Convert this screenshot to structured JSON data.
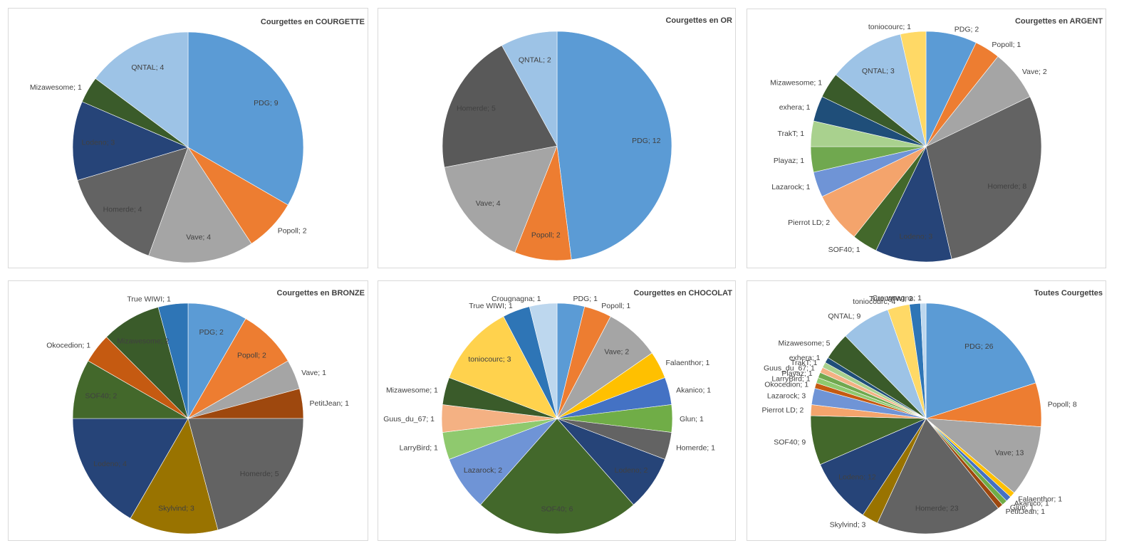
{
  "chart_data": [
    {
      "type": "pie",
      "title": "Courgettes en COURGETTE",
      "slices": [
        {
          "label": "PDG; 9",
          "value": 9,
          "color": "#5b9bd5"
        },
        {
          "label": "Popoll; 2",
          "value": 2,
          "color": "#ed7d31"
        },
        {
          "label": "Vave; 4",
          "value": 4,
          "color": "#a5a5a5"
        },
        {
          "label": "Homerde; 4",
          "value": 4,
          "color": "#636363"
        },
        {
          "label": "Lodeno; 3",
          "value": 3,
          "color": "#264478"
        },
        {
          "label": "Mizawesome; 1",
          "value": 1,
          "color": "#3a5b2a"
        },
        {
          "label": "QNTAL; 4",
          "value": 4,
          "color": "#9dc3e6"
        }
      ]
    },
    {
      "type": "pie",
      "title": "Courgettes en OR",
      "slices": [
        {
          "label": "PDG; 12",
          "value": 12,
          "color": "#5b9bd5"
        },
        {
          "label": "Popoll; 2",
          "value": 2,
          "color": "#ed7d31"
        },
        {
          "label": "Vave; 4",
          "value": 4,
          "color": "#a5a5a5"
        },
        {
          "label": "Homerde; 5",
          "value": 5,
          "color": "#595959"
        },
        {
          "label": "QNTAL; 2",
          "value": 2,
          "color": "#9dc3e6"
        }
      ]
    },
    {
      "type": "pie",
      "title": "Courgettes en ARGENT",
      "slices": [
        {
          "label": "PDG; 2",
          "value": 2,
          "color": "#5b9bd5"
        },
        {
          "label": "Popoll; 1",
          "value": 1,
          "color": "#ed7d31"
        },
        {
          "label": "Vave; 2",
          "value": 2,
          "color": "#a5a5a5"
        },
        {
          "label": "Homerde; 8",
          "value": 8,
          "color": "#636363"
        },
        {
          "label": "Lodeno; 3",
          "value": 3,
          "color": "#264478"
        },
        {
          "label": "SOF40; 1",
          "value": 1,
          "color": "#43682b"
        },
        {
          "label": "Pierrot LD; 2",
          "value": 2,
          "color": "#f4a46c"
        },
        {
          "label": "Lazarock; 1",
          "value": 1,
          "color": "#6f94d6"
        },
        {
          "label": "Playaz; 1",
          "value": 1,
          "color": "#70a84f"
        },
        {
          "label": "TrakT; 1",
          "value": 1,
          "color": "#a9d18e"
        },
        {
          "label": "exhera; 1",
          "value": 1,
          "color": "#1f4e79"
        },
        {
          "label": "Mizawesome; 1",
          "value": 1,
          "color": "#3a5b2a"
        },
        {
          "label": "QNTAL; 3",
          "value": 3,
          "color": "#9dc3e6"
        },
        {
          "label": "toniocourc; 1",
          "value": 1,
          "color": "#ffd966"
        }
      ]
    },
    {
      "type": "pie",
      "title": "Courgettes en BRONZE",
      "slices": [
        {
          "label": "PDG; 2",
          "value": 2,
          "color": "#5b9bd5"
        },
        {
          "label": "Popoll; 2",
          "value": 2,
          "color": "#ed7d31"
        },
        {
          "label": "Vave; 1",
          "value": 1,
          "color": "#a5a5a5"
        },
        {
          "label": "PetitJean; 1",
          "value": 1,
          "color": "#9e480e"
        },
        {
          "label": "Homerde; 5",
          "value": 5,
          "color": "#636363"
        },
        {
          "label": "Skylvind; 3",
          "value": 3,
          "color": "#997300"
        },
        {
          "label": "Lodeno; 4",
          "value": 4,
          "color": "#264478"
        },
        {
          "label": "SOF40; 2",
          "value": 2,
          "color": "#43682b"
        },
        {
          "label": "Okocedion; 1",
          "value": 1,
          "color": "#c55a11"
        },
        {
          "label": "Mizawesome; 2",
          "value": 2,
          "color": "#3a5b2a"
        },
        {
          "label": "True WIWI; 1",
          "value": 1,
          "color": "#2e75b6"
        }
      ]
    },
    {
      "type": "pie",
      "title": "Courgettes en CHOCOLAT",
      "slices": [
        {
          "label": "PDG; 1",
          "value": 1,
          "color": "#5b9bd5"
        },
        {
          "label": "Popoll; 1",
          "value": 1,
          "color": "#ed7d31"
        },
        {
          "label": "Vave; 2",
          "value": 2,
          "color": "#a5a5a5"
        },
        {
          "label": "Falaenthor; 1",
          "value": 1,
          "color": "#ffc000"
        },
        {
          "label": "Akanico; 1",
          "value": 1,
          "color": "#4472c4"
        },
        {
          "label": "Glun; 1",
          "value": 1,
          "color": "#70ad47"
        },
        {
          "label": "Homerde; 1",
          "value": 1,
          "color": "#636363"
        },
        {
          "label": "Lodeno; 2",
          "value": 2,
          "color": "#264478"
        },
        {
          "label": "SOF40; 6",
          "value": 6,
          "color": "#43682b"
        },
        {
          "label": "Lazarock; 2",
          "value": 2,
          "color": "#6f94d6"
        },
        {
          "label": "LarryBird; 1",
          "value": 1,
          "color": "#8fc96e"
        },
        {
          "label": "Guus_du_67; 1",
          "value": 1,
          "color": "#f4b183"
        },
        {
          "label": "Mizawesome; 1",
          "value": 1,
          "color": "#3a5b2a"
        },
        {
          "label": "toniocourc; 3",
          "value": 3,
          "color": "#ffd24d"
        },
        {
          "label": "True WIWI; 1",
          "value": 1,
          "color": "#2e75b6"
        },
        {
          "label": "Crougnagna; 1",
          "value": 1,
          "color": "#bdd7ee"
        }
      ]
    },
    {
      "type": "pie",
      "title": "Toutes Courgettes",
      "slices": [
        {
          "label": "PDG; 26",
          "value": 26,
          "color": "#5b9bd5"
        },
        {
          "label": "Popoll; 8",
          "value": 8,
          "color": "#ed7d31"
        },
        {
          "label": "Vave; 13",
          "value": 13,
          "color": "#a5a5a5"
        },
        {
          "label": "Falaenthor; 1",
          "value": 1,
          "color": "#ffc000"
        },
        {
          "label": "Akanico; 1",
          "value": 1,
          "color": "#4472c4"
        },
        {
          "label": "Glun; 1",
          "value": 1,
          "color": "#70ad47"
        },
        {
          "label": "PetitJean; 1",
          "value": 1,
          "color": "#9e480e"
        },
        {
          "label": "Homerde; 23",
          "value": 23,
          "color": "#636363"
        },
        {
          "label": "Skylvind; 3",
          "value": 3,
          "color": "#997300"
        },
        {
          "label": "Lodeno; 12",
          "value": 12,
          "color": "#264478"
        },
        {
          "label": "SOF40; 9",
          "value": 9,
          "color": "#43682b"
        },
        {
          "label": "Pierrot LD; 2",
          "value": 2,
          "color": "#f4a46c"
        },
        {
          "label": "Lazarock; 3",
          "value": 3,
          "color": "#6f94d6"
        },
        {
          "label": "Okocedion; 1",
          "value": 1,
          "color": "#c55a11"
        },
        {
          "label": "LarryBird; 1",
          "value": 1,
          "color": "#8fc96e"
        },
        {
          "label": "Playaz; 1",
          "value": 1,
          "color": "#70a84f"
        },
        {
          "label": "Guus_du_67; 1",
          "value": 1,
          "color": "#f4b183"
        },
        {
          "label": "TrakT; 1",
          "value": 1,
          "color": "#a9d18e"
        },
        {
          "label": "exhera; 1",
          "value": 1,
          "color": "#1f4e79"
        },
        {
          "label": "Mizawesome; 5",
          "value": 5,
          "color": "#3a5b2a"
        },
        {
          "label": "QNTAL; 9",
          "value": 9,
          "color": "#9dc3e6"
        },
        {
          "label": "toniocourc; 4",
          "value": 4,
          "color": "#ffd966"
        },
        {
          "label": "True WIWI; 2",
          "value": 2,
          "color": "#2e75b6"
        },
        {
          "label": "Crougnagna; 1",
          "value": 1,
          "color": "#bdd7ee"
        }
      ]
    }
  ]
}
